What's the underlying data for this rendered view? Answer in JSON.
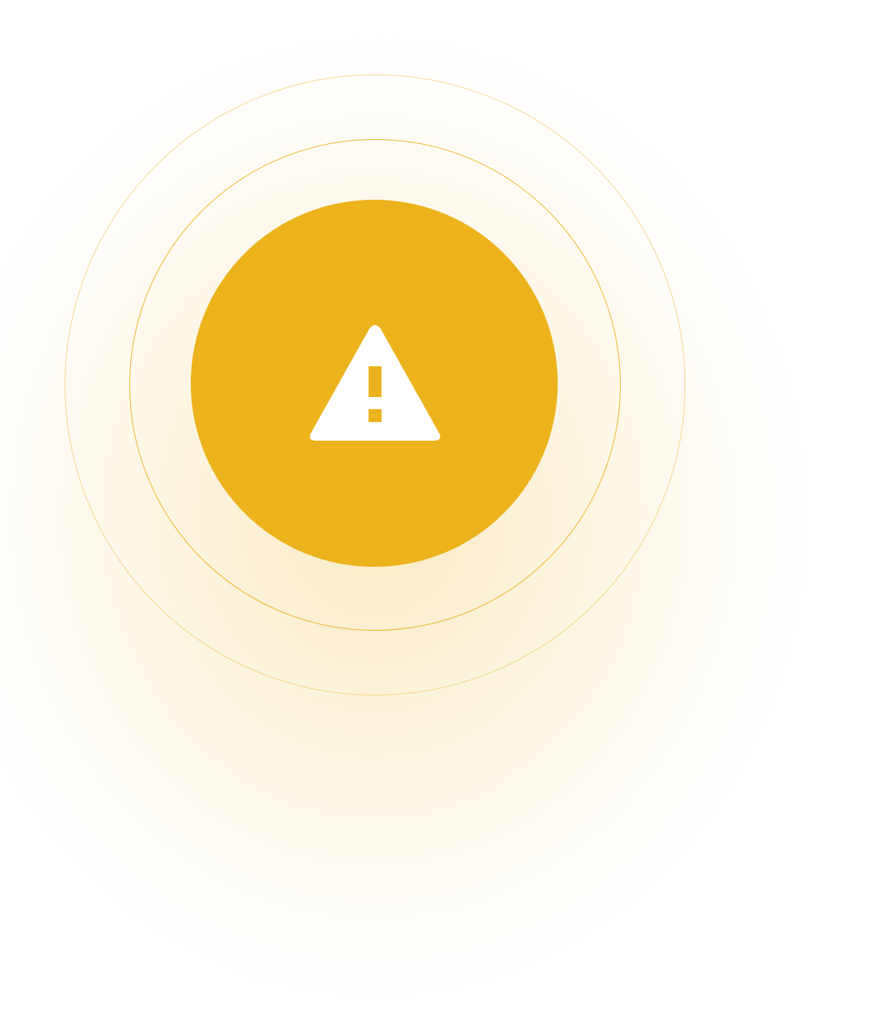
{
  "alert": {
    "icon": "warning-triangle-icon",
    "accent_color": "#ECB31C",
    "icon_color": "#FFFFFF"
  }
}
